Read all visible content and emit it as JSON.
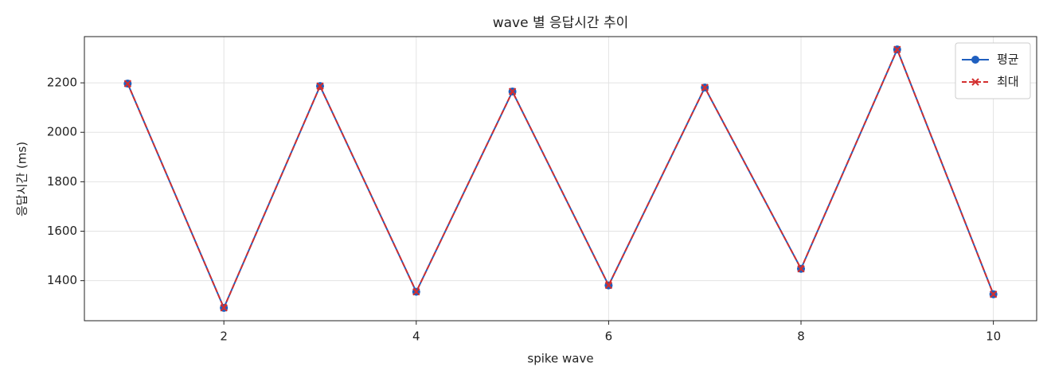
{
  "chart_data": {
    "type": "line",
    "title": "wave 별 응답시간 추이",
    "x_label": "spike wave",
    "y_label": "응답시간 (ms)",
    "x": [
      1,
      2,
      3,
      4,
      5,
      6,
      7,
      8,
      9,
      10
    ],
    "series": [
      {
        "name": "평균",
        "color": "#1f5fbf",
        "marker": "circle",
        "dash": false,
        "values": [
          2197,
          1290,
          2187,
          1355,
          2165,
          1381,
          2181,
          1448,
          2335,
          1345
        ]
      },
      {
        "name": "최대",
        "color": "#d32f2f",
        "marker": "x",
        "dash": true,
        "values": [
          2197,
          1290,
          2187,
          1355,
          2165,
          1381,
          2181,
          1448,
          2335,
          1345
        ]
      }
    ],
    "xlim": [
      0.55,
      10.45
    ],
    "xticks": [
      2,
      4,
      6,
      8,
      10
    ],
    "ylim": [
      1238,
      2387
    ],
    "yticks": [
      1400,
      1600,
      1800,
      2000,
      2200
    ],
    "grid": true,
    "legend": "upper right"
  }
}
